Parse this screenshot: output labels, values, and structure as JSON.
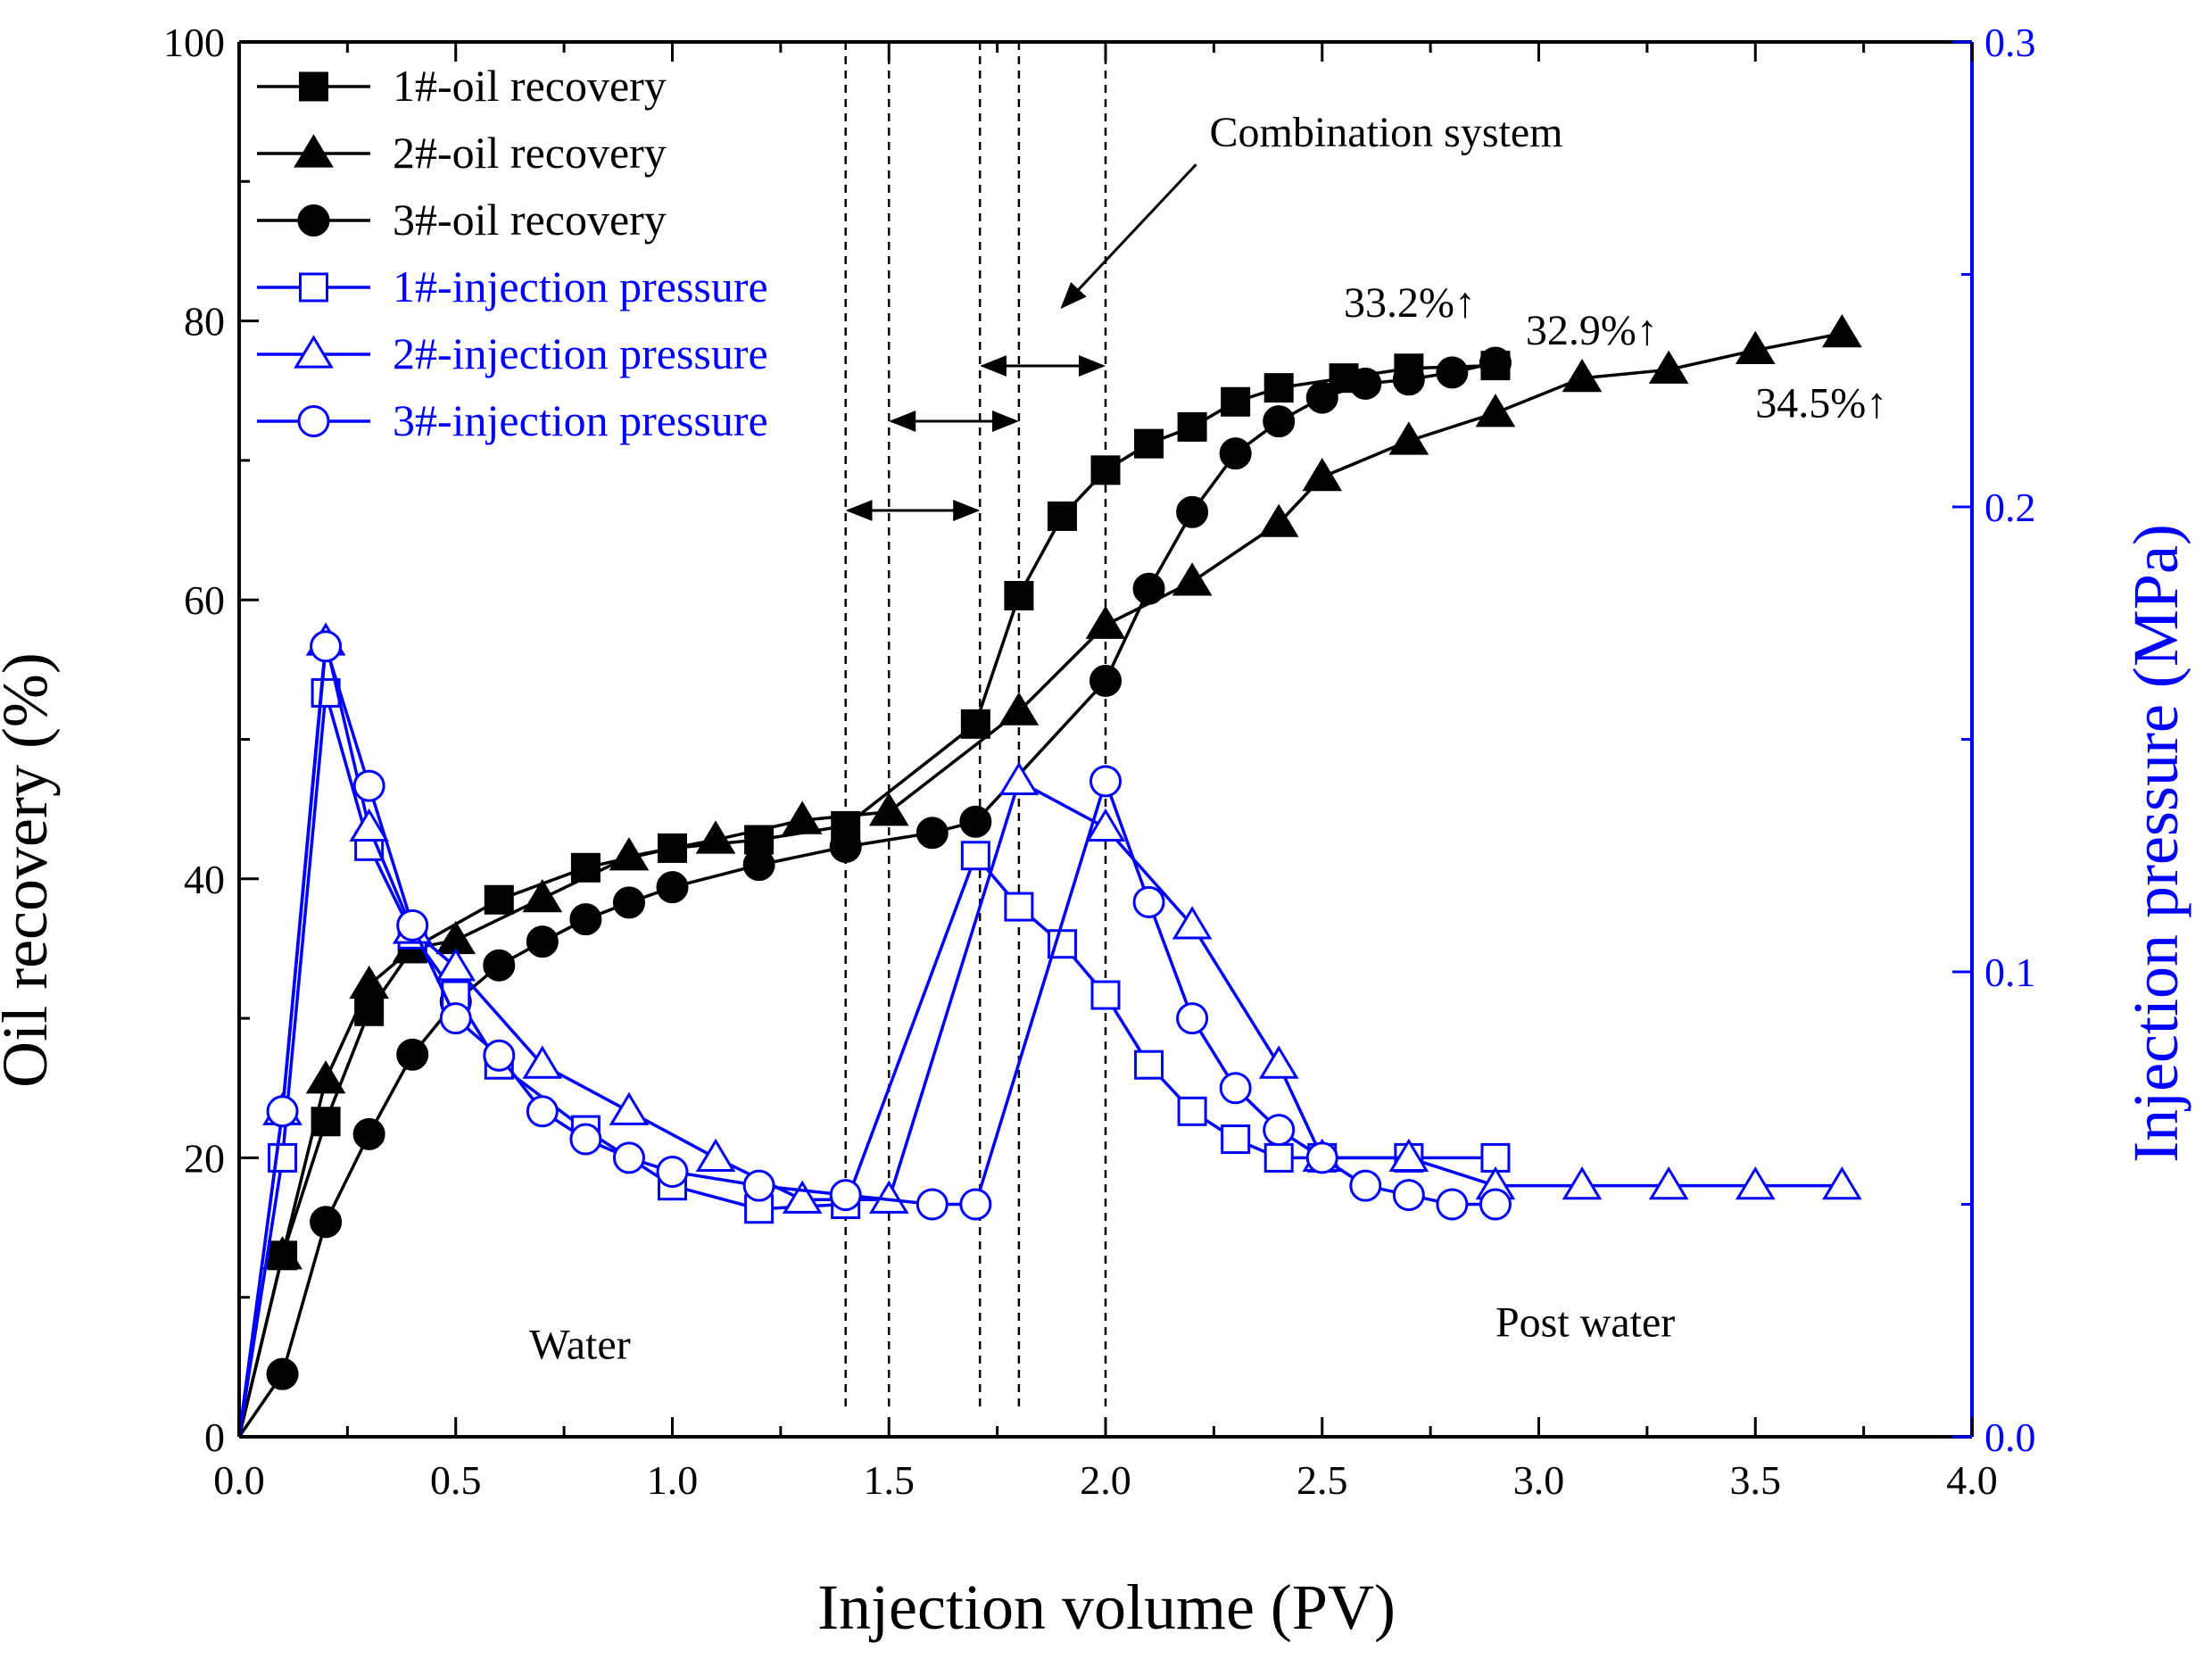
{
  "chart_data": {
    "type": "line",
    "xlabel": "Injection volume (PV)",
    "ylabel": "Oil recovery (%)",
    "y2label": "Injection pressure (MPa)",
    "xlim": [
      0,
      4
    ],
    "ylim": [
      0,
      100
    ],
    "y2lim": [
      0,
      0.3
    ],
    "xticks": [
      "0.0",
      "0.5",
      "1.0",
      "1.5",
      "2.0",
      "2.5",
      "3.0",
      "3.5",
      "4.0"
    ],
    "yticks": [
      "0",
      "20",
      "40",
      "60",
      "80",
      "100"
    ],
    "y2ticks": [
      "0.0",
      "0.1",
      "0.2",
      "0.3"
    ],
    "colors": {
      "recovery": "#000000",
      "pressure": "#0000ff"
    },
    "series": [
      {
        "name": "1#-oil recovery",
        "axis": "left",
        "marker": "square",
        "filled": true,
        "x": [
          0,
          0.1,
          0.2,
          0.3,
          0.4,
          0.6,
          0.8,
          1.0,
          1.2,
          1.4,
          1.7,
          1.8,
          1.9,
          2.0,
          2.1,
          2.2,
          2.3,
          2.4,
          2.55,
          2.7,
          2.9
        ],
        "y": [
          0,
          13.0,
          22.6,
          30.5,
          35.0,
          38.5,
          40.8,
          42.2,
          42.8,
          43.8,
          51.1,
          60.3,
          66.0,
          69.3,
          71.2,
          72.4,
          74.2,
          75.2,
          75.9,
          76.6,
          76.8
        ]
      },
      {
        "name": "2#-oil recovery",
        "axis": "left",
        "marker": "triangle",
        "filled": true,
        "x": [
          0,
          0.1,
          0.2,
          0.3,
          0.4,
          0.5,
          0.7,
          0.9,
          1.1,
          1.3,
          1.5,
          1.8,
          2.0,
          2.2,
          2.4,
          2.5,
          2.7,
          2.9,
          3.1,
          3.3,
          3.5,
          3.7
        ],
        "y": [
          0,
          13.0,
          25.6,
          32.4,
          35.0,
          35.6,
          38.6,
          41.6,
          42.8,
          44.2,
          44.8,
          52.0,
          58.2,
          61.3,
          65.5,
          68.8,
          71.4,
          73.4,
          75.9,
          76.5,
          77.9,
          79.1
        ]
      },
      {
        "name": "3#-oil recovery",
        "axis": "left",
        "marker": "circle",
        "filled": true,
        "x": [
          0,
          0.1,
          0.2,
          0.3,
          0.4,
          0.5,
          0.6,
          0.7,
          0.8,
          0.9,
          1.0,
          1.2,
          1.4,
          1.6,
          1.7,
          2.0,
          2.1,
          2.2,
          2.3,
          2.4,
          2.5,
          2.6,
          2.7,
          2.8,
          2.9
        ],
        "y": [
          0,
          4.5,
          15.4,
          21.7,
          27.4,
          31.2,
          33.8,
          35.5,
          37.1,
          38.3,
          39.4,
          41.0,
          42.3,
          43.3,
          44.1,
          54.2,
          60.8,
          66.3,
          70.5,
          72.8,
          74.5,
          75.5,
          75.8,
          76.3,
          77.0
        ]
      },
      {
        "name": "1#-injection pressure",
        "axis": "right",
        "marker": "square",
        "filled": false,
        "x": [
          0,
          0.1,
          0.2,
          0.3,
          0.4,
          0.5,
          0.6,
          0.8,
          1.0,
          1.2,
          1.4,
          1.7,
          1.8,
          1.9,
          2.0,
          2.1,
          2.2,
          2.3,
          2.4,
          2.5,
          2.7,
          2.9
        ],
        "y": [
          0,
          0.06,
          0.16,
          0.127,
          0.108,
          0.095,
          0.08,
          0.066,
          0.054,
          0.049,
          0.05,
          0.125,
          0.114,
          0.106,
          0.095,
          0.08,
          0.07,
          0.064,
          0.06,
          0.06,
          0.06,
          0.06
        ]
      },
      {
        "name": "2#-injection pressure",
        "axis": "right",
        "marker": "triangle",
        "filled": false,
        "x": [
          0,
          0.1,
          0.2,
          0.3,
          0.4,
          0.5,
          0.7,
          0.9,
          1.1,
          1.3,
          1.5,
          1.8,
          2.0,
          2.2,
          2.4,
          2.5,
          2.7,
          2.9,
          3.1,
          3.3,
          3.5,
          3.7
        ],
        "y": [
          0,
          0.07,
          0.171,
          0.131,
          0.109,
          0.101,
          0.08,
          0.07,
          0.06,
          0.051,
          0.051,
          0.141,
          0.131,
          0.11,
          0.08,
          0.06,
          0.06,
          0.054,
          0.054,
          0.054,
          0.054,
          0.054
        ]
      },
      {
        "name": "3#-injection pressure",
        "axis": "right",
        "marker": "circle",
        "filled": false,
        "x": [
          0,
          0.1,
          0.2,
          0.3,
          0.4,
          0.5,
          0.6,
          0.7,
          0.8,
          0.9,
          1.0,
          1.2,
          1.4,
          1.6,
          1.7,
          2.0,
          2.1,
          2.2,
          2.3,
          2.4,
          2.5,
          2.6,
          2.7,
          2.8,
          2.9
        ],
        "y": [
          0,
          0.07,
          0.17,
          0.14,
          0.11,
          0.09,
          0.082,
          0.07,
          0.064,
          0.06,
          0.057,
          0.054,
          0.052,
          0.05,
          0.05,
          0.141,
          0.115,
          0.09,
          0.075,
          0.066,
          0.06,
          0.054,
          0.052,
          0.05,
          0.05
        ]
      }
    ],
    "vlines": [
      1.4,
      1.5,
      1.71,
      1.8,
      2.0
    ],
    "spans": [
      [
        1.4,
        1.71
      ],
      [
        1.5,
        1.8
      ],
      [
        1.71,
        2.0
      ]
    ],
    "annotations": [
      {
        "text": "Combination system",
        "x": 2.24,
        "y": 92.5,
        "arrow_to": [
          1.9,
          81.0
        ]
      },
      {
        "text": "33.2%↑",
        "x": 2.55,
        "y": 80.3
      },
      {
        "text": "32.9%↑",
        "x": 2.97,
        "y": 78.3
      },
      {
        "text": "34.5%↑",
        "x": 3.5,
        "y": 73.1
      },
      {
        "text": "Water",
        "x": 0.67,
        "y": 5.6
      },
      {
        "text": "Post water",
        "x": 2.9,
        "y": 7.2
      }
    ],
    "legend_position": "top-left"
  }
}
